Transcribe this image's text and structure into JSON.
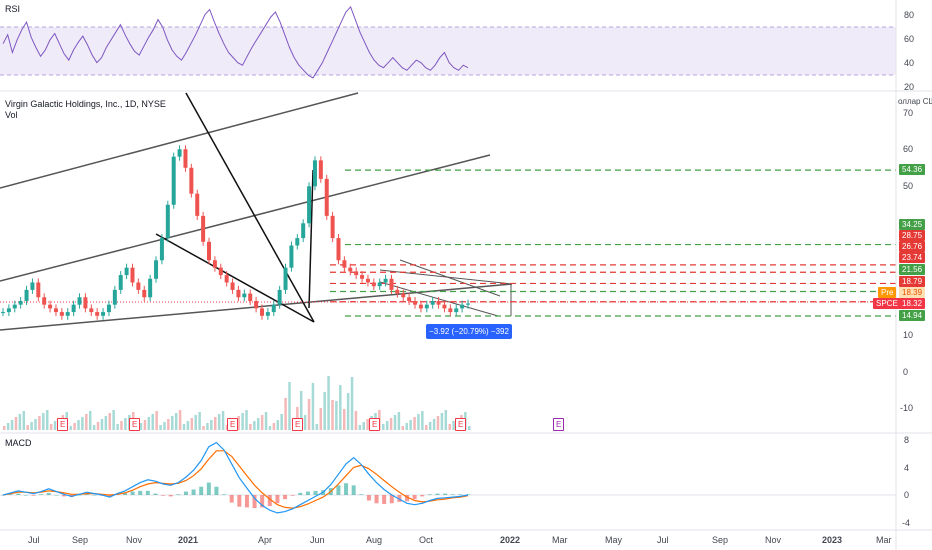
{
  "chart_data": [
    {
      "type": "line",
      "title": "RSI",
      "y_ticks": [
        80,
        60,
        40,
        20
      ],
      "overbought_band": [
        30,
        70
      ],
      "color": "#7e57c2",
      "values": [
        55,
        62,
        48,
        58,
        66,
        72,
        60,
        52,
        45,
        50,
        58,
        63,
        55,
        47,
        42,
        50,
        56,
        61,
        54,
        46,
        40,
        44,
        52,
        58,
        64,
        70,
        62,
        55,
        49,
        46,
        53,
        60,
        66,
        74,
        68,
        58,
        50,
        45,
        42,
        48,
        55,
        62,
        70,
        78,
        82,
        72,
        63,
        55,
        48,
        44,
        40,
        38,
        45,
        52,
        58,
        64,
        70,
        76,
        80,
        72,
        62,
        52,
        44,
        38,
        34,
        30,
        28,
        34,
        40,
        48,
        56,
        64,
        72,
        80,
        84,
        74,
        64,
        56,
        48,
        42,
        38,
        36,
        40,
        44,
        40,
        36,
        34,
        38,
        42,
        40,
        36,
        34,
        38,
        44,
        48,
        40,
        36,
        34,
        38,
        36
      ]
    },
    {
      "type": "line",
      "title": "Virgin Galactic Holdings, Inc., 1D, NYSE",
      "subtitle": "Vol",
      "currency_label": "оллар СШ",
      "y_ticks": [
        70.0,
        60.0,
        50.0,
        40.0,
        30.0,
        20.0,
        10.0,
        0.0,
        -10.0
      ],
      "x_ticks": [
        "Jul",
        "Sep",
        "Nov",
        "2021",
        "Apr",
        "Jun",
        "Aug",
        "Oct",
        "2022",
        "Mar",
        "May",
        "Jul",
        "Sep",
        "Nov",
        "2023",
        "Mar"
      ],
      "series": [
        {
          "name": "SPCE",
          "values": [
            16,
            17,
            18,
            19,
            22,
            24,
            20,
            18,
            17,
            16,
            15,
            16,
            18,
            20,
            17,
            16,
            15,
            16,
            18,
            22,
            26,
            28,
            24,
            22,
            20,
            25,
            30,
            36,
            45,
            58,
            60,
            55,
            48,
            42,
            35,
            30,
            28,
            26,
            24,
            22,
            20,
            21,
            19,
            17,
            15,
            16,
            18,
            22,
            28,
            34,
            36,
            40,
            50,
            57,
            52,
            42,
            36,
            30,
            28,
            27,
            26,
            25,
            24,
            23,
            24,
            25,
            22,
            21,
            20,
            19,
            18,
            17,
            18,
            19,
            18,
            17,
            16,
            17,
            18,
            18.32
          ]
        }
      ],
      "price_levels": [
        {
          "value": "54.36",
          "color": "#43a047"
        },
        {
          "value": "34.25",
          "color": "#43a047"
        },
        {
          "value": "28.75",
          "color": "#e53935"
        },
        {
          "value": "26.76",
          "color": "#e53935"
        },
        {
          "value": "23.74",
          "color": "#e53935"
        },
        {
          "value": "21.56",
          "color": "#43a047"
        },
        {
          "value": "18.79",
          "color": "#e53935"
        },
        {
          "value": "14.94",
          "color": "#43a047"
        }
      ],
      "pre_tag": {
        "label": "Pre",
        "value": "18.39"
      },
      "last_tag": {
        "label": "SPCE",
        "value": "18.32"
      },
      "measure_label": "−3.92 (−20.79%) −392",
      "earnings_markers": [
        "E",
        "E",
        "E",
        "E",
        "E",
        "E",
        "E",
        "E",
        "E"
      ]
    },
    {
      "type": "line",
      "title": "MACD",
      "y_ticks": [
        8.0,
        4.0,
        0.0,
        -4.0
      ],
      "series": [
        {
          "name": "MACD",
          "color": "#2196f3",
          "values": [
            0,
            0.3,
            0.6,
            0.4,
            0.2,
            0.5,
            0.9,
            0.5,
            0.1,
            -0.2,
            0.1,
            0.4,
            0.2,
            0,
            -0.3,
            0.2,
            0.6,
            1.2,
            1.8,
            2.2,
            2.0,
            1.6,
            1.4,
            1.8,
            2.6,
            3.6,
            5,
            7,
            7.6,
            6.5,
            4.5,
            2.5,
            1,
            -0.5,
            -1.5,
            -2.2,
            -2.6,
            -2.4,
            -2,
            -1.4,
            -0.8,
            -0.2,
            0.4,
            1.5,
            3,
            4.5,
            5.4,
            4.4,
            3,
            1.8,
            0.8,
            0,
            -0.6,
            -1.2,
            -1.4,
            -1.2,
            -0.8,
            -0.5,
            -0.4,
            -0.3,
            -0.2,
            0
          ]
        },
        {
          "name": "Signal",
          "color": "#ff6d00",
          "values": [
            0,
            0.2,
            0.4,
            0.4,
            0.3,
            0.4,
            0.6,
            0.5,
            0.3,
            0.1,
            0.1,
            0.2,
            0.2,
            0.1,
            0,
            0.1,
            0.3,
            0.7,
            1.2,
            1.6,
            1.8,
            1.7,
            1.6,
            1.7,
            2.1,
            2.8,
            3.8,
            5.2,
            6.4,
            6.4,
            5.6,
            4.2,
            2.8,
            1.4,
            0.3,
            -0.6,
            -1.4,
            -1.8,
            -1.9,
            -1.7,
            -1.3,
            -0.8,
            -0.3,
            0.5,
            1.6,
            2.8,
            4,
            4.3,
            3.8,
            3,
            2.1,
            1.2,
            0.4,
            -0.3,
            -0.8,
            -1,
            -0.9,
            -0.7,
            -0.6,
            -0.4,
            -0.3,
            -0.1
          ]
        }
      ]
    }
  ]
}
